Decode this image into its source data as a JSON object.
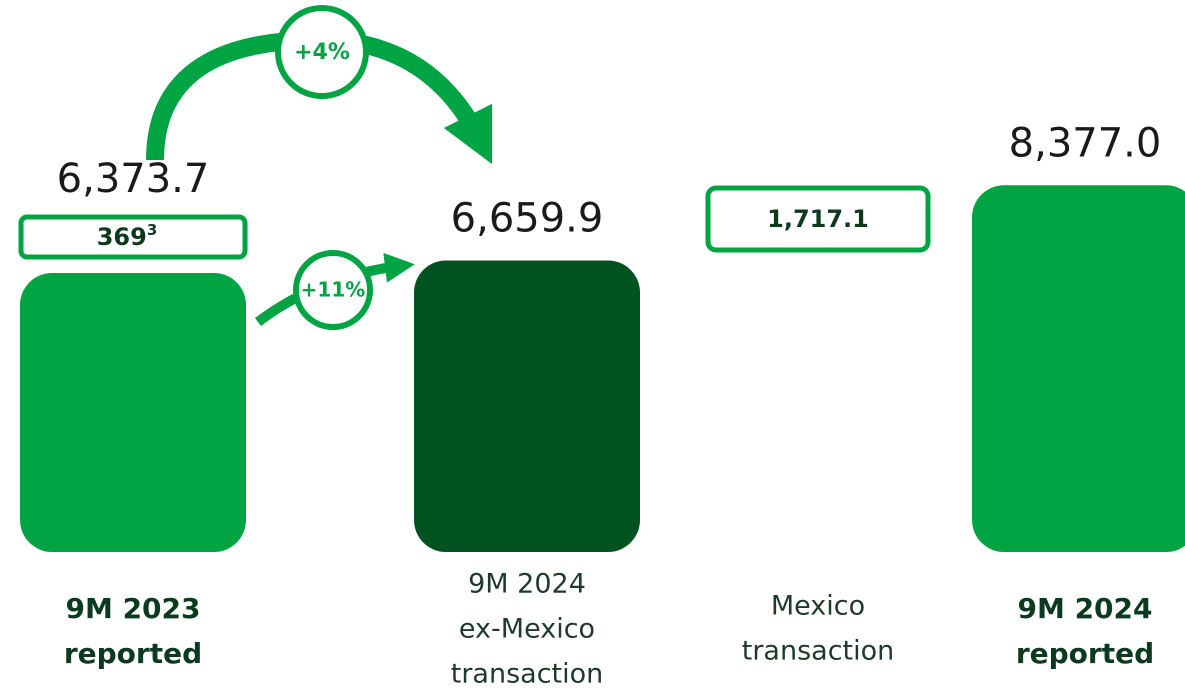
{
  "chart_data": {
    "type": "waterfall",
    "categories": [
      [
        "9M 2023",
        "reported"
      ],
      [
        "9M 2024",
        "ex-Mexico",
        "transaction"
      ],
      [
        "Mexico",
        "transaction"
      ],
      [
        "9M 2024",
        "reported"
      ]
    ],
    "category_bold": [
      true,
      false,
      false,
      true
    ],
    "values": [
      6373.7,
      6659.9,
      1717.1,
      8377.0
    ],
    "value_labels": [
      "6,373.7",
      "6,659.9",
      "1,717.1",
      "8,377.0"
    ],
    "bar_kind": [
      "total",
      "total",
      "step",
      "total"
    ],
    "colors": [
      "#00a443",
      "#00521f",
      "#00a443",
      "#00a443"
    ],
    "ylim": [
      0,
      9000
    ],
    "annotations": {
      "base_box": {
        "value": 369,
        "footnote": "3"
      },
      "growth_total": "+4%",
      "growth_organic": "+11%"
    }
  }
}
